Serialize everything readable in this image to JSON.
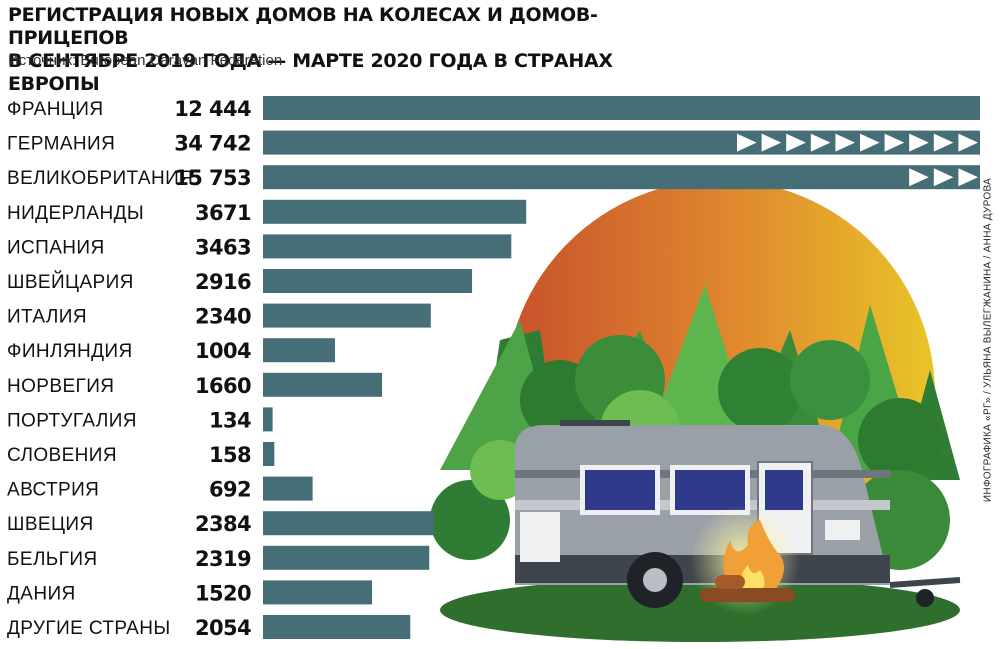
{
  "header": {
    "title_line1": "РЕГИСТРАЦИЯ НОВЫХ ДОМОВ НА КОЛЕСАХ И ДОМОВ-ПРИЦЕПОВ",
    "title_line2": "В СЕНТЯБРЕ 2019 ГОДА — МАРТЕ 2020 ГОДА В СТРАНАХ ЕВРОПЫ",
    "source": "Источник: European Caravan Federation"
  },
  "credit": "ИНФОГРАФИКА «РГ» / УЛЬЯНА ВЫЛЕГЖАНИНА / АННА ДУРОВА",
  "colors": {
    "bar": "#456e76",
    "sun_left": "#c8502c",
    "sun_right": "#e8c528",
    "tree_dark": "#3a8a3a",
    "tree_light": "#6dbd52",
    "caravan_body": "#9aa0a8",
    "fire": "#f0a036"
  },
  "icons": [
    "fire-icon",
    "caravan-illustration",
    "tree-icon",
    "sun-icon"
  ],
  "chart_data": {
    "type": "bar",
    "orientation": "horizontal",
    "categories": [
      "ФРАНЦИЯ",
      "ГЕРМАНИЯ",
      "ВЕЛИКОБРИТАНИЯ",
      "НИДЕРЛАНДЫ",
      "ИСПАНИЯ",
      "ШВЕЙЦАРИЯ",
      "ИТАЛИЯ",
      "ФИНЛЯНДИЯ",
      "НОРВЕГИЯ",
      "ПОРТУГАЛИЯ",
      "СЛОВЕНИЯ",
      "АВСТРИЯ",
      "ШВЕЦИЯ",
      "БЕЛЬГИЯ",
      "ДАНИЯ",
      "ДРУГИЕ СТРАНЫ"
    ],
    "values": [
      12444,
      34742,
      15753,
      3671,
      3463,
      2916,
      2340,
      1004,
      1660,
      134,
      158,
      692,
      2384,
      2319,
      1520,
      2054
    ],
    "value_labels": [
      "12 444",
      "34 742",
      "15 753",
      "3671",
      "3463",
      "2916",
      "2340",
      "1004",
      "1660",
      "134",
      "158",
      "692",
      "2384",
      "2319",
      "1520",
      "2054"
    ],
    "truncated": [
      false,
      true,
      true,
      false,
      false,
      false,
      false,
      false,
      false,
      false,
      false,
      false,
      false,
      false,
      false,
      false
    ],
    "xlim": [
      0,
      10000
    ],
    "grid": false,
    "title": "РЕГИСТРАЦИЯ НОВЫХ ДОМОВ НА КОЛЕСАХ И ДОМОВ-ПРИЦЕПОВ В СЕНТЯБРЕ 2019 ГОДА — МАРТЕ 2020 ГОДА В СТРАНАХ ЕВРОПЫ"
  }
}
